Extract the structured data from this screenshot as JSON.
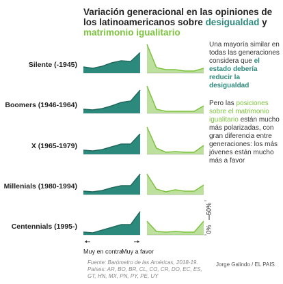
{
  "chart_data": {
    "type": "area",
    "title": [
      "Variación generacional en las opiniones de los latinoamericanos sobre ",
      " y "
    ],
    "rows": [
      "Silente (-1945)",
      "Boomers (1946-1964)",
      "X (1965-1979)",
      "Millenials (1980-1994)",
      "Centennials (1995-)"
    ],
    "series": [
      {
        "name": "desigualdad",
        "color": "#2c8a7c",
        "values": [
          [
            9,
            7,
            10,
            15,
            18,
            17,
            30
          ],
          [
            6,
            5,
            7,
            11,
            16,
            18,
            34
          ],
          [
            6,
            5,
            7,
            11,
            15,
            15,
            30
          ],
          [
            5,
            4,
            6,
            10,
            13,
            13,
            30
          ],
          [
            4,
            3,
            7,
            11,
            15,
            15,
            34
          ]
        ]
      },
      {
        "name": "matrimonio igualitario",
        "color": "#7dc23f",
        "values": [
          [
            42,
            8,
            5,
            5,
            3,
            3,
            7
          ],
          [
            40,
            6,
            3,
            3,
            3,
            3,
            11
          ],
          [
            40,
            9,
            3,
            4,
            3,
            3,
            13
          ],
          [
            30,
            8,
            4,
            7,
            5,
            5,
            14
          ],
          [
            20,
            5,
            4,
            5,
            4,
            4,
            20
          ]
        ]
      }
    ],
    "xlabels": [
      "Muy en contra",
      "Muy a favor"
    ],
    "ylim": [
      0,
      50
    ],
    "yticks": [
      {
        "value": 0,
        "label": "0%"
      },
      {
        "value": 50,
        "label": "50%"
      }
    ],
    "annotations": [
      {
        "text": "Una mayoría similar en todas las generaciones considera que ",
        "highlight": "el estado debería reducir la desigualdad"
      },
      {
        "text": "Pero las ",
        "highlight": "posiciones sobre el matrimonio igualitario",
        "rest": " están mucho más polarizadas, con gran diferencia entre generaciones: los más jóvenes están mucho más a favor"
      }
    ],
    "source": [
      "Fuente: Barómetro de las Américas, 2018-19.",
      "Países: AR, BO, BR, CL, CO, CR, DO, EC, ES, GT, HN, MX, PN, PY, PE, UY"
    ],
    "credit": "Jorge Galindo / EL PAIS"
  }
}
